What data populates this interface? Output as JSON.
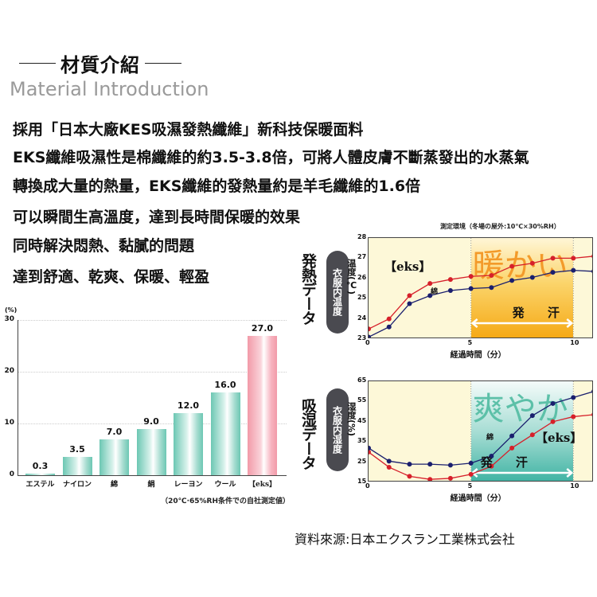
{
  "header": {
    "title": "材質介紹",
    "subtitle": "Material Introduction"
  },
  "description": [
    "採用「日本大廠KES吸濕發熱纖維」新科技保暖面料",
    "EKS纖維吸濕性是棉纖維的約3.5-3.8倍，可將人體皮膚不斷蒸發出的水蒸氣",
    "轉換成大量的熱量，EKS纖維的發熱量約是羊毛纖維的1.6倍",
    "可以瞬間生高溫度，達到長時間保暖的效果",
    "同時解決悶熱、黏膩的問題",
    "達到舒適、乾爽、保暖、輕盈"
  ],
  "source": "資料來源:日本エクスラン工業株式会社",
  "colors": {
    "teal_bar": "#6cc7b3",
    "pink_bar": "#f29aa8",
    "eks_line": "#d6202a",
    "cotton_line": "#1a1f6e",
    "warm_bg": "#f7b21a",
    "cool_bg": "#3fb3a3",
    "plot_bg": "#fdf8d8"
  },
  "chart_data": [
    {
      "type": "bar",
      "title": "",
      "ylabel": "(%)",
      "xlabel": "",
      "categories": [
        "エステル",
        "ナイロン",
        "綿",
        "絹",
        "レーヨン",
        "ウール",
        "【eks】"
      ],
      "values": [
        0.3,
        3.5,
        7.0,
        9.0,
        12.0,
        16.0,
        27.0
      ],
      "value_labels": [
        "0.3",
        "3.5",
        "7.0",
        "9.0",
        "12.0",
        "16.0",
        "27.0"
      ],
      "yticks": [
        "0",
        "10",
        "20",
        "30"
      ],
      "ylim": [
        0,
        30
      ],
      "grid": true,
      "note": "（20℃·65%RH条件での自社測定値）",
      "highlight": "【eks】"
    },
    {
      "type": "line",
      "side_label": "発熱データ",
      "pill_label": "衣服内温度",
      "title": "測定環境（冬場の屋外:10℃×30%RH）",
      "ylabel": "温度(℃)",
      "xlabel": "経過時間（分）",
      "x": [
        0,
        1,
        2,
        3,
        4,
        5,
        6,
        7,
        8,
        9,
        10,
        11
      ],
      "xticks": [
        "0",
        "5",
        "10"
      ],
      "yticks": [
        "23",
        "24",
        "25",
        "26",
        "27",
        "28"
      ],
      "ylim": [
        23,
        28
      ],
      "series": [
        {
          "name": "【eks】",
          "values": [
            23.5,
            24.0,
            25.15,
            25.75,
            25.95,
            26.1,
            26.15,
            26.6,
            26.75,
            27.0,
            27.0,
            27.1
          ]
        },
        {
          "name": "綿",
          "values": [
            23.1,
            23.6,
            24.75,
            25.15,
            25.4,
            25.5,
            25.55,
            25.9,
            26.05,
            26.3,
            26.4,
            26.35
          ]
        }
      ],
      "annotations": {
        "highlight_word": "暖かい",
        "sweat_label": "発 汗",
        "sweat_range": [
          5,
          10
        ],
        "eks_label": "【eks】",
        "cotton_label": "綿"
      }
    },
    {
      "type": "line",
      "side_label": "吸湿データ",
      "pill_label": "衣服内湿度",
      "title": "",
      "ylabel": "湿度(%)",
      "xlabel": "経過時間（分）",
      "x": [
        0,
        1,
        2,
        3,
        4,
        5,
        6,
        7,
        8,
        9,
        10,
        11
      ],
      "xticks": [
        "0",
        "5",
        "10"
      ],
      "yticks": [
        "15",
        "25",
        "35",
        "45",
        "55",
        "65"
      ],
      "ylim": [
        15,
        65
      ],
      "series": [
        {
          "name": "【eks】",
          "values": [
            30,
            22.5,
            18,
            16.5,
            17,
            19,
            23,
            32,
            38.5,
            45,
            47.5,
            48.5
          ]
        },
        {
          "name": "綿",
          "values": [
            32,
            25.5,
            24,
            24,
            23.5,
            24.5,
            28,
            38,
            48,
            54,
            57,
            60
          ]
        }
      ],
      "annotations": {
        "highlight_word": "爽やか",
        "sweat_label": "発 汗",
        "sweat_range": [
          5,
          10
        ],
        "eks_label": "【eks】",
        "cotton_label": "綿"
      }
    }
  ]
}
